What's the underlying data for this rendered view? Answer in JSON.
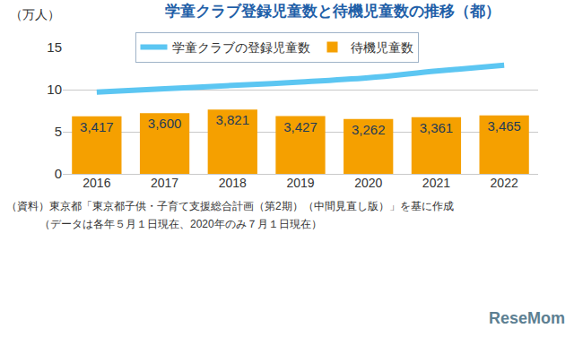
{
  "chart_data": {
    "type": "bar",
    "title": "学童クラブ登録児童数と待機児童数の推移（都）",
    "y_label": "（万人）",
    "categories": [
      "2016",
      "2017",
      "2018",
      "2019",
      "2020",
      "2021",
      "2022"
    ],
    "series": [
      {
        "name": "学童クラブの登録児童数",
        "type": "line",
        "color": "#5cc6f2",
        "values": [
          9.7,
          10.1,
          10.5,
          10.9,
          11.4,
          12.2,
          12.9
        ]
      },
      {
        "name": "待機児童数",
        "type": "bar",
        "color": "#f5a000",
        "axis": "y2",
        "data_labels": true,
        "values": [
          3417,
          3600,
          3821,
          3427,
          3262,
          3361,
          3465
        ],
        "value_labels": [
          "3,417",
          "3,600",
          "3,821",
          "3,427",
          "3,262",
          "3,361",
          "3,465"
        ]
      }
    ],
    "ylim": [
      0,
      15
    ],
    "yticks": [
      0,
      5,
      10,
      15
    ],
    "y2lim": [
      0,
      7500
    ],
    "grid": true,
    "legend": "top",
    "notes": [
      "（資料）東京都「東京都子供・子育て支援総合計画（第2期）（中間見直し版）」を基に作成",
      "（データは各年５月１日現在、2020年のみ７月１日現在）"
    ],
    "watermark": "ReseMom"
  }
}
